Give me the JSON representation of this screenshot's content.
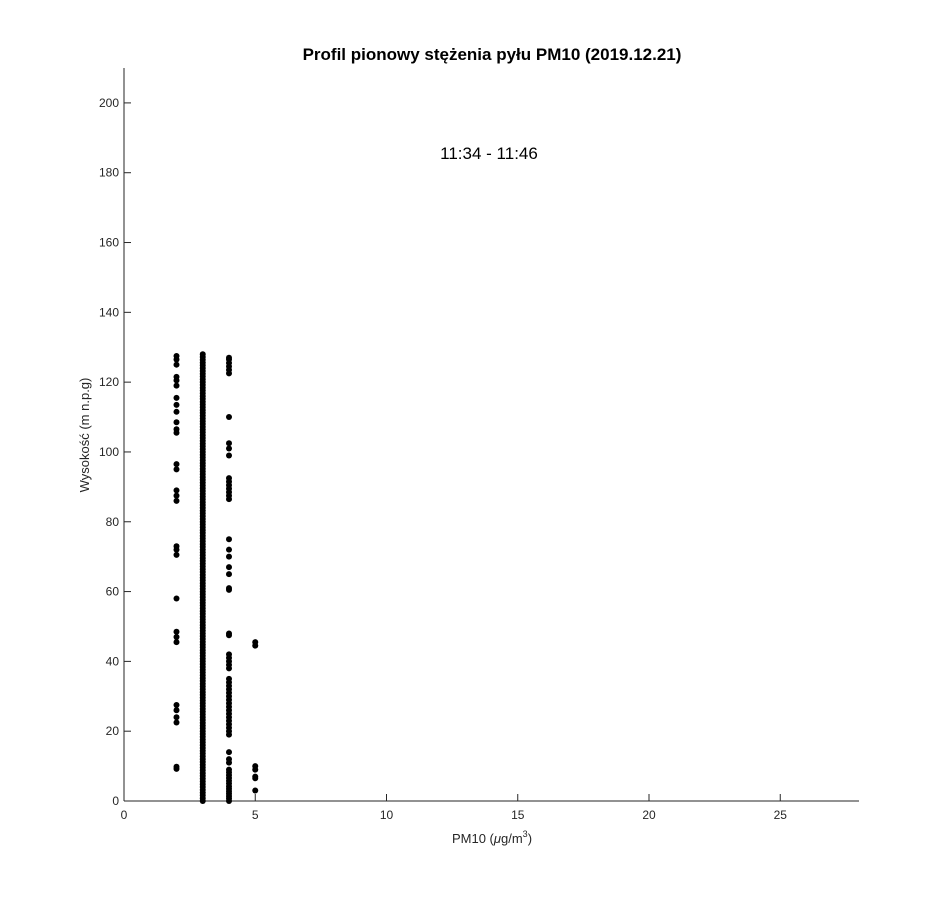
{
  "chart_data": {
    "type": "scatter",
    "title": "Profil pionowy stężenia pyłu PM10 (2019.12.21)",
    "annotation": "11:34 - 11:46",
    "xlabel": {
      "prefix": "PM10 (",
      "mu": "μ",
      "mid": "g/m",
      "sup": "3",
      "suffix": ")"
    },
    "ylabel": "Wysokość (m n.p.g)",
    "xlim": [
      0,
      28
    ],
    "ylim": [
      0,
      210
    ],
    "xticks": [
      0,
      5,
      10,
      15,
      20,
      25
    ],
    "yticks": [
      0,
      20,
      40,
      60,
      80,
      100,
      120,
      140,
      160,
      180,
      200
    ],
    "grid": false,
    "marker_color": "#000000",
    "series": [
      {
        "x": 2,
        "y": [
          9.2,
          9.8,
          22.5,
          24,
          26,
          27.5,
          45.5,
          47,
          48.5,
          58,
          70.5,
          72,
          73,
          86,
          87.5,
          89,
          95,
          96.5,
          105.5,
          106.5,
          108.5,
          111.5,
          113.5,
          115.5,
          119,
          120.5,
          121.5,
          125,
          126.5,
          127.5
        ]
      },
      {
        "x": 3,
        "y_dense_segments": [
          [
            0,
            128,
            0.8
          ]
        ]
      },
      {
        "x": 4,
        "y": [
          0,
          0.7,
          1.4,
          2.1,
          2.8,
          3.5,
          4.2,
          5,
          5.8,
          6.6,
          7.4,
          8.2,
          9,
          11,
          12,
          14,
          19,
          20,
          21,
          22,
          23,
          24,
          25,
          26,
          27,
          28,
          29,
          30,
          31,
          32,
          33,
          34,
          35,
          38,
          39,
          40,
          41,
          42,
          47.5,
          48,
          60.5,
          61,
          65,
          67,
          70,
          72,
          75,
          86.5,
          87.5,
          88.5,
          89.5,
          90.5,
          91.5,
          92.5,
          99,
          101,
          102.5,
          110,
          122.5,
          123.5,
          124.5,
          125.5,
          126.5,
          127
        ]
      },
      {
        "x": 5,
        "y": [
          3,
          6.5,
          7,
          9,
          10,
          44.5,
          45.5
        ]
      }
    ]
  }
}
